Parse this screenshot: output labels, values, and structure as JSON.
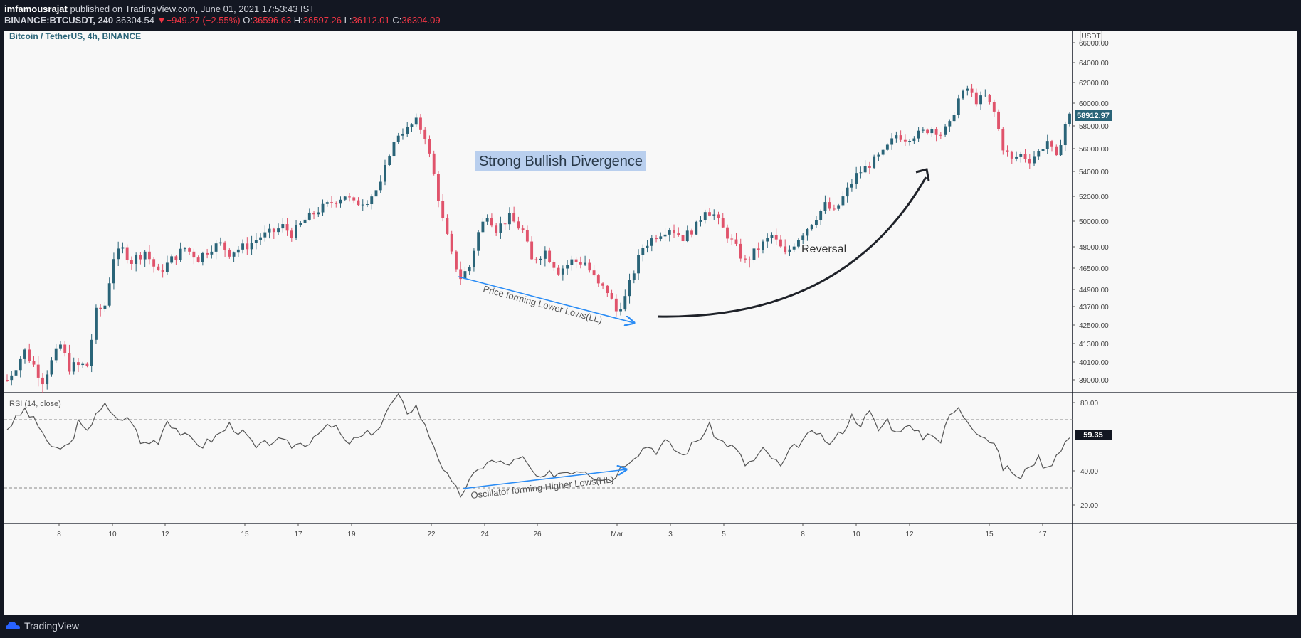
{
  "header": {
    "author": "imfamousrajat",
    "published_text": "published on TradingView.com, June 01, 2021 17:53:43 IST",
    "symbol_line": "BINANCE:BTCUSDT, 240",
    "last": "36304.54",
    "change": "−949.27 (−2.55%)",
    "o_label": "O:",
    "o": "36596.63",
    "h_label": "H:",
    "h": "36597.26",
    "l_label": "L:",
    "l": "36112.01",
    "c_label": "C:",
    "c": "36304.09"
  },
  "footer": {
    "brand": "TradingView"
  },
  "colors": {
    "up": "#2a6478",
    "down": "#e0536b",
    "rsi": "#555555",
    "annot_blue": "#2a8cf5",
    "arc": "#1f2229",
    "label_bg": "#b9cfee"
  },
  "chart_data": [
    {
      "type": "candlestick",
      "title": "Bitcoin / TetherUS, 4h, BINANCE",
      "currency": "USDT",
      "y_ticks": [
        "66000.00",
        "64000.00",
        "62000.00",
        "60000.00",
        "58000.00",
        "56000.00",
        "54000.00",
        "52000.00",
        "50000.00",
        "48000.00",
        "46500.00",
        "44900.00",
        "43700.00",
        "42500.00",
        "41300.00",
        "40100.00",
        "39000.00"
      ],
      "last_price_label": "58912.97",
      "x_ticks": [
        "8",
        "10",
        "12",
        "15",
        "17",
        "19",
        "22",
        "24",
        "26",
        "Mar",
        "3",
        "5",
        "8",
        "10",
        "12",
        "15",
        "17"
      ],
      "annotations": [
        {
          "text": "Strong Bullish Divergence",
          "style": "highlight"
        },
        {
          "text": "Price forming Lower Lows(LL)",
          "style": "blue-arrow"
        },
        {
          "text": "Reversal",
          "style": "curved-arrow"
        }
      ],
      "candle_path": [
        [
          0,
          39000
        ],
        [
          4,
          40800
        ],
        [
          8,
          39000
        ],
        [
          12,
          41200
        ],
        [
          14,
          39800
        ],
        [
          18,
          39900
        ],
        [
          20,
          43300
        ],
        [
          22,
          43800
        ],
        [
          24,
          47300
        ],
        [
          26,
          47800
        ],
        [
          28,
          47000
        ],
        [
          31,
          47700
        ],
        [
          34,
          46100
        ],
        [
          37,
          47100
        ],
        [
          40,
          47900
        ],
        [
          43,
          47200
        ],
        [
          46,
          48000
        ],
        [
          48,
          48200
        ],
        [
          50,
          47600
        ],
        [
          54,
          48100
        ],
        [
          57,
          48800
        ],
        [
          60,
          49200
        ],
        [
          62,
          49600
        ],
        [
          64,
          49000
        ],
        [
          67,
          50100
        ],
        [
          70,
          50900
        ],
        [
          73,
          51500
        ],
        [
          76,
          52100
        ],
        [
          78,
          51400
        ],
        [
          81,
          51700
        ],
        [
          84,
          52900
        ],
        [
          86,
          55600
        ],
        [
          88,
          57300
        ],
        [
          90,
          57700
        ],
        [
          92,
          58400
        ],
        [
          94,
          57100
        ],
        [
          96,
          53700
        ],
        [
          98,
          50100
        ],
        [
          100,
          47400
        ],
        [
          102,
          45800
        ],
        [
          104,
          46600
        ],
        [
          106,
          49100
        ],
        [
          108,
          50600
        ],
        [
          110,
          49400
        ],
        [
          113,
          50300
        ],
        [
          116,
          49200
        ],
        [
          118,
          47000
        ],
        [
          121,
          47700
        ],
        [
          124,
          46300
        ],
        [
          127,
          47000
        ],
        [
          130,
          46900
        ],
        [
          133,
          45200
        ],
        [
          135,
          44800
        ],
        [
          137,
          43400
        ],
        [
          139,
          44300
        ],
        [
          141,
          46300
        ],
        [
          143,
          48000
        ],
        [
          146,
          48900
        ],
        [
          149,
          49500
        ],
        [
          152,
          48700
        ],
        [
          155,
          49600
        ],
        [
          157,
          51000
        ],
        [
          159,
          50500
        ],
        [
          161,
          49400
        ],
        [
          163,
          48400
        ],
        [
          166,
          46900
        ],
        [
          169,
          47900
        ],
        [
          172,
          48900
        ],
        [
          175,
          47400
        ],
        [
          178,
          48700
        ],
        [
          181,
          49900
        ],
        [
          184,
          51300
        ],
        [
          186,
          50700
        ],
        [
          188,
          51900
        ],
        [
          191,
          53700
        ],
        [
          194,
          54600
        ],
        [
          197,
          55600
        ],
        [
          200,
          57200
        ],
        [
          202,
          56900
        ],
        [
          205,
          57300
        ],
        [
          208,
          57800
        ],
        [
          210,
          57300
        ],
        [
          212,
          58100
        ],
        [
          214,
          60400
        ],
        [
          216,
          61400
        ],
        [
          218,
          60200
        ],
        [
          220,
          60700
        ],
        [
          222,
          59200
        ],
        [
          224,
          56100
        ],
        [
          226,
          55000
        ],
        [
          228,
          55500
        ],
        [
          230,
          55000
        ],
        [
          232,
          55700
        ],
        [
          234,
          56700
        ],
        [
          236,
          55100
        ],
        [
          238,
          58200
        ],
        [
          239,
          58900
        ]
      ]
    },
    {
      "type": "line",
      "title": "RSI (14, close)",
      "y_ticks": [
        "80.00",
        "40.00",
        "20.00"
      ],
      "levels": [
        70,
        30
      ],
      "last_value_label": "59.35",
      "annotations": [
        {
          "text": "Oscillator forming Higher Lows(HL)",
          "style": "blue-arrow"
        }
      ],
      "rsi_path": [
        [
          0,
          65
        ],
        [
          4,
          76
        ],
        [
          8,
          63
        ],
        [
          10,
          52
        ],
        [
          14,
          55
        ],
        [
          16,
          68
        ],
        [
          18,
          62
        ],
        [
          20,
          75
        ],
        [
          22,
          78
        ],
        [
          24,
          71
        ],
        [
          28,
          70
        ],
        [
          30,
          56
        ],
        [
          34,
          58
        ],
        [
          36,
          70
        ],
        [
          40,
          60
        ],
        [
          44,
          55
        ],
        [
          48,
          62
        ],
        [
          50,
          67
        ],
        [
          54,
          60
        ],
        [
          56,
          53
        ],
        [
          60,
          58
        ],
        [
          64,
          55
        ],
        [
          68,
          57
        ],
        [
          70,
          64
        ],
        [
          74,
          66
        ],
        [
          76,
          56
        ],
        [
          80,
          60
        ],
        [
          84,
          66
        ],
        [
          86,
          78
        ],
        [
          88,
          83
        ],
        [
          90,
          75
        ],
        [
          92,
          78
        ],
        [
          94,
          66
        ],
        [
          96,
          55
        ],
        [
          98,
          42
        ],
        [
          100,
          32
        ],
        [
          102,
          26
        ],
        [
          104,
          34
        ],
        [
          106,
          40
        ],
        [
          108,
          46
        ],
        [
          112,
          44
        ],
        [
          116,
          47
        ],
        [
          118,
          40
        ],
        [
          120,
          34
        ],
        [
          122,
          38
        ],
        [
          126,
          40
        ],
        [
          130,
          41
        ],
        [
          132,
          37
        ],
        [
          134,
          36
        ],
        [
          136,
          35
        ],
        [
          138,
          42
        ],
        [
          140,
          47
        ],
        [
          142,
          51
        ],
        [
          144,
          55
        ],
        [
          146,
          52
        ],
        [
          148,
          57
        ],
        [
          150,
          53
        ],
        [
          152,
          49
        ],
        [
          154,
          55
        ],
        [
          156,
          60
        ],
        [
          158,
          66
        ],
        [
          160,
          58
        ],
        [
          162,
          56
        ],
        [
          164,
          52
        ],
        [
          166,
          44
        ],
        [
          168,
          46
        ],
        [
          170,
          52
        ],
        [
          172,
          48
        ],
        [
          174,
          42
        ],
        [
          176,
          51
        ],
        [
          178,
          56
        ],
        [
          180,
          60
        ],
        [
          182,
          63
        ],
        [
          184,
          56
        ],
        [
          186,
          58
        ],
        [
          188,
          64
        ],
        [
          190,
          72
        ],
        [
          192,
          68
        ],
        [
          194,
          74
        ],
        [
          196,
          64
        ],
        [
          198,
          70
        ],
        [
          200,
          62
        ],
        [
          202,
          68
        ],
        [
          204,
          63
        ],
        [
          206,
          60
        ],
        [
          208,
          63
        ],
        [
          210,
          57
        ],
        [
          212,
          73
        ],
        [
          214,
          76
        ],
        [
          216,
          70
        ],
        [
          218,
          64
        ],
        [
          220,
          60
        ],
        [
          222,
          56
        ],
        [
          224,
          42
        ],
        [
          226,
          40
        ],
        [
          228,
          35
        ],
        [
          230,
          44
        ],
        [
          232,
          47
        ],
        [
          234,
          41
        ],
        [
          236,
          50
        ],
        [
          238,
          57
        ],
        [
          239,
          59.35
        ]
      ]
    }
  ]
}
